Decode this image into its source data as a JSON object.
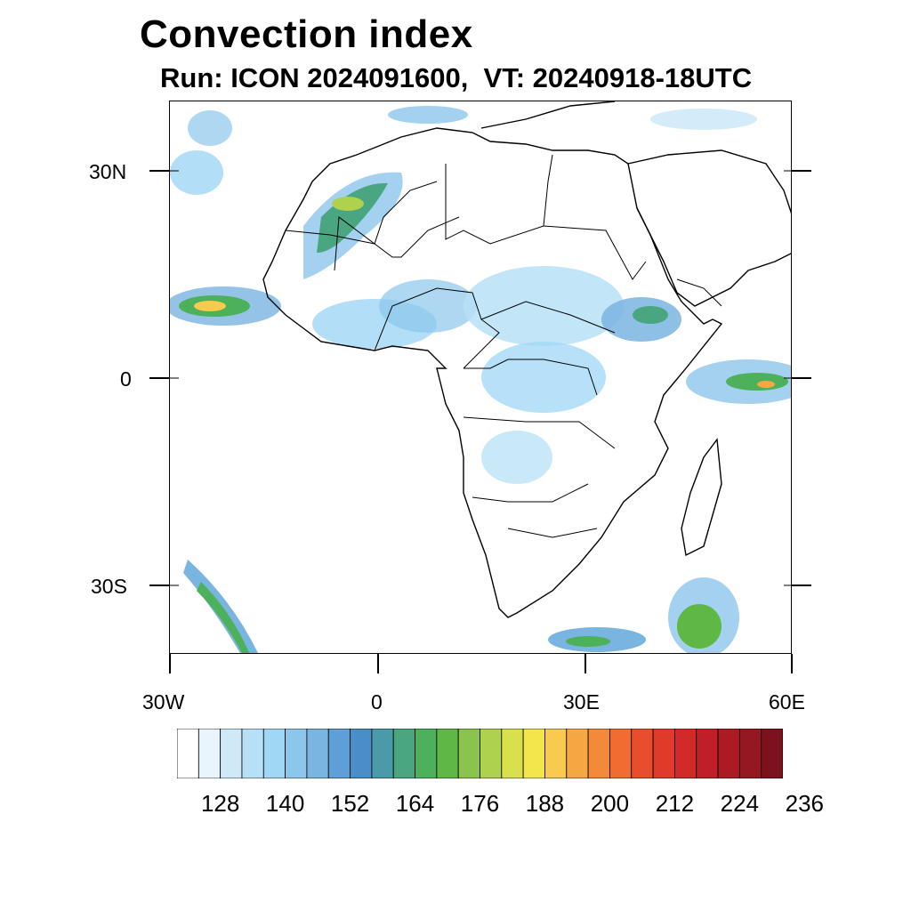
{
  "title": "Convection index",
  "subtitle": "Run: ICON 2024091600,  VT: 20240918-18UTC",
  "map": {
    "lon_range": [
      -30,
      60
    ],
    "lat_range": [
      -40,
      40
    ],
    "lon_ticks": [
      "30W",
      "0",
      "30E",
      "60E"
    ],
    "lat_ticks": [
      "30N",
      "0",
      "30S"
    ]
  },
  "colorbar": {
    "labels": [
      "128",
      "140",
      "152",
      "164",
      "176",
      "188",
      "200",
      "212",
      "224",
      "236"
    ],
    "colors": [
      "#ffffff",
      "#e8f5fc",
      "#cfe9f8",
      "#b7e0f6",
      "#9fd7f5",
      "#8cc6eb",
      "#7ab4e1",
      "#5e9fd6",
      "#4a8ec7",
      "#4a9aa8",
      "#4aa680",
      "#4db05a",
      "#5fb845",
      "#8cc24e",
      "#aed14e",
      "#d8e14c",
      "#f2e64c",
      "#f8cb4e",
      "#f6a743",
      "#f38a39",
      "#f06c31",
      "#e94e2c",
      "#df3a2a",
      "#d22929",
      "#c11f27",
      "#ac1a23",
      "#951721",
      "#7b121c"
    ]
  }
}
